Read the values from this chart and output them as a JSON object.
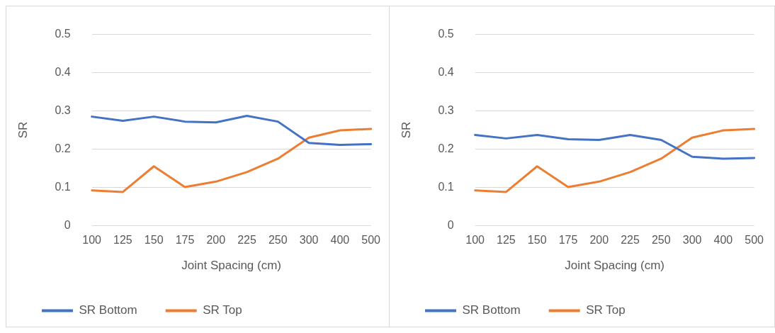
{
  "chart_data": [
    {
      "type": "line",
      "xlabel": "Joint Spacing (cm)",
      "ylabel": "SR",
      "categories": [
        "100",
        "125",
        "150",
        "175",
        "200",
        "225",
        "250",
        "300",
        "400",
        "500"
      ],
      "series": [
        {
          "name": "SR Bottom",
          "color": "#4472c4",
          "values": [
            0.285,
            0.274,
            0.285,
            0.272,
            0.27,
            0.287,
            0.272,
            0.216,
            0.211,
            0.213
          ]
        },
        {
          "name": "SR Top",
          "color": "#ed7d31",
          "values": [
            0.092,
            0.088,
            0.155,
            0.101,
            0.115,
            0.14,
            0.175,
            0.23,
            0.249,
            0.253
          ]
        }
      ],
      "ylim": [
        0,
        0.5
      ],
      "yticks": [
        0,
        0.1,
        0.2,
        0.3,
        0.4,
        0.5
      ],
      "grid": "y",
      "legend": "bottom",
      "marker": "none",
      "line_style": "solid"
    },
    {
      "type": "line",
      "xlabel": "Joint Spacing (cm)",
      "ylabel": "SR",
      "categories": [
        "100",
        "125",
        "150",
        "175",
        "200",
        "225",
        "250",
        "300",
        "400",
        "500"
      ],
      "series": [
        {
          "name": "SR Bottom",
          "color": "#4472c4",
          "values": [
            0.237,
            0.228,
            0.237,
            0.226,
            0.224,
            0.237,
            0.224,
            0.18,
            0.175,
            0.177
          ]
        },
        {
          "name": "SR Top",
          "color": "#ed7d31",
          "values": [
            0.092,
            0.088,
            0.155,
            0.101,
            0.115,
            0.14,
            0.175,
            0.23,
            0.249,
            0.253
          ]
        }
      ],
      "ylim": [
        0,
        0.5
      ],
      "yticks": [
        0,
        0.1,
        0.2,
        0.3,
        0.4,
        0.5
      ],
      "grid": "y",
      "legend": "bottom",
      "marker": "none",
      "line_style": "solid"
    }
  ]
}
